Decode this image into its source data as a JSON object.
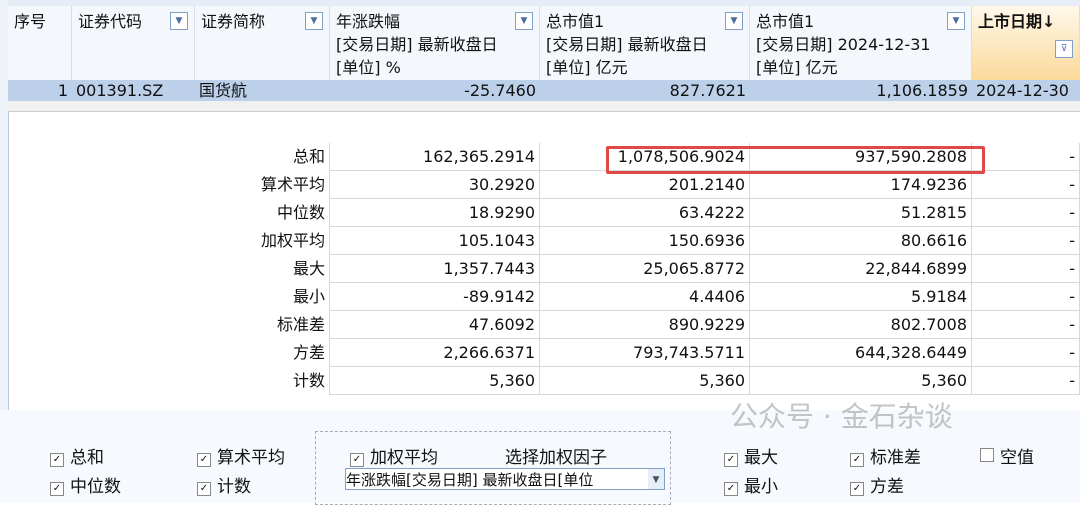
{
  "headers": [
    {
      "label": "序号",
      "filter": false
    },
    {
      "label": "证券代码",
      "filter": true
    },
    {
      "label": "证券简称",
      "filter": true
    },
    {
      "label": "年涨跌幅\n[交易日期] 最新收盘日\n[单位] %",
      "filter": true
    },
    {
      "label": "总市值1\n[交易日期] 最新收盘日\n[单位] 亿元",
      "filter": true
    },
    {
      "label": "总市值1\n[交易日期] 2024-12-31\n[单位] 亿元",
      "filter": true
    },
    {
      "label": "上市日期↓",
      "filter": true,
      "filter_icon": "funnel-icon"
    }
  ],
  "data_row": [
    "1",
    "001391.SZ",
    "国货航",
    "-25.7460",
    "827.7621",
    "1,106.1859",
    "2024-12-30"
  ],
  "stats": [
    {
      "label": "总和",
      "v": [
        "162,365.2914",
        "1,078,506.9024",
        "937,590.2808",
        "-"
      ]
    },
    {
      "label": "算术平均",
      "v": [
        "30.2920",
        "201.2140",
        "174.9236",
        "-"
      ]
    },
    {
      "label": "中位数",
      "v": [
        "18.9290",
        "63.4222",
        "51.2815",
        "-"
      ]
    },
    {
      "label": "加权平均",
      "v": [
        "105.1043",
        "150.6936",
        "80.6616",
        "-"
      ]
    },
    {
      "label": "最大",
      "v": [
        "1,357.7443",
        "25,065.8772",
        "22,844.6899",
        "-"
      ]
    },
    {
      "label": "最小",
      "v": [
        "-89.9142",
        "4.4406",
        "5.9184",
        "-"
      ]
    },
    {
      "label": "标准差",
      "v": [
        "47.6092",
        "890.9229",
        "802.7008",
        "-"
      ]
    },
    {
      "label": "方差",
      "v": [
        "2,266.6371",
        "793,743.5711",
        "644,328.6449",
        "-"
      ]
    },
    {
      "label": "计数",
      "v": [
        "5,360",
        "5,360",
        "5,360",
        "-"
      ]
    }
  ],
  "highlight_color": "#e04848",
  "options": {
    "sum": {
      "label": "总和",
      "checked": true
    },
    "median": {
      "label": "中位数",
      "checked": true
    },
    "mean": {
      "label": "算术平均",
      "checked": true
    },
    "count": {
      "label": "计数",
      "checked": true
    },
    "weighted": {
      "label": "加权平均",
      "checked": true
    },
    "weight_factor_label": "选择加权因子",
    "weight_factor_value": "年涨跌幅[交易日期] 最新收盘日[单位",
    "max": {
      "label": "最大",
      "checked": true
    },
    "min": {
      "label": "最小",
      "checked": true
    },
    "std": {
      "label": "标准差",
      "checked": true
    },
    "var": {
      "label": "方差",
      "checked": true
    },
    "null": {
      "label": "空值",
      "checked": false
    }
  },
  "watermark": "公众号 · 金石杂谈"
}
